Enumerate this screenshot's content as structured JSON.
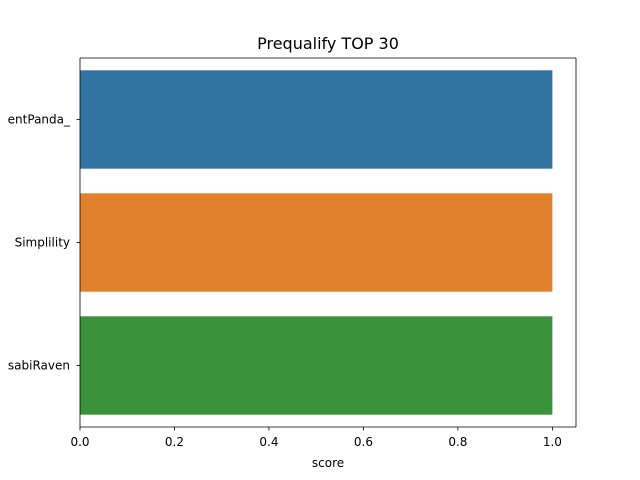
{
  "chart_data": {
    "type": "bar",
    "orientation": "horizontal",
    "title": "Prequalify TOP 30",
    "xlabel": "score",
    "ylabel": "",
    "categories": [
      "entPanda_",
      "Simplility",
      "sabiRaven"
    ],
    "values": [
      1.0,
      1.0,
      1.0
    ],
    "colors": [
      "#3274a1",
      "#e1812c",
      "#3a923a"
    ],
    "xlim": [
      0,
      1.05
    ],
    "xticks": [
      "0.0",
      "0.2",
      "0.4",
      "0.6",
      "0.8",
      "1.0"
    ],
    "grid": false,
    "legend": "none"
  }
}
